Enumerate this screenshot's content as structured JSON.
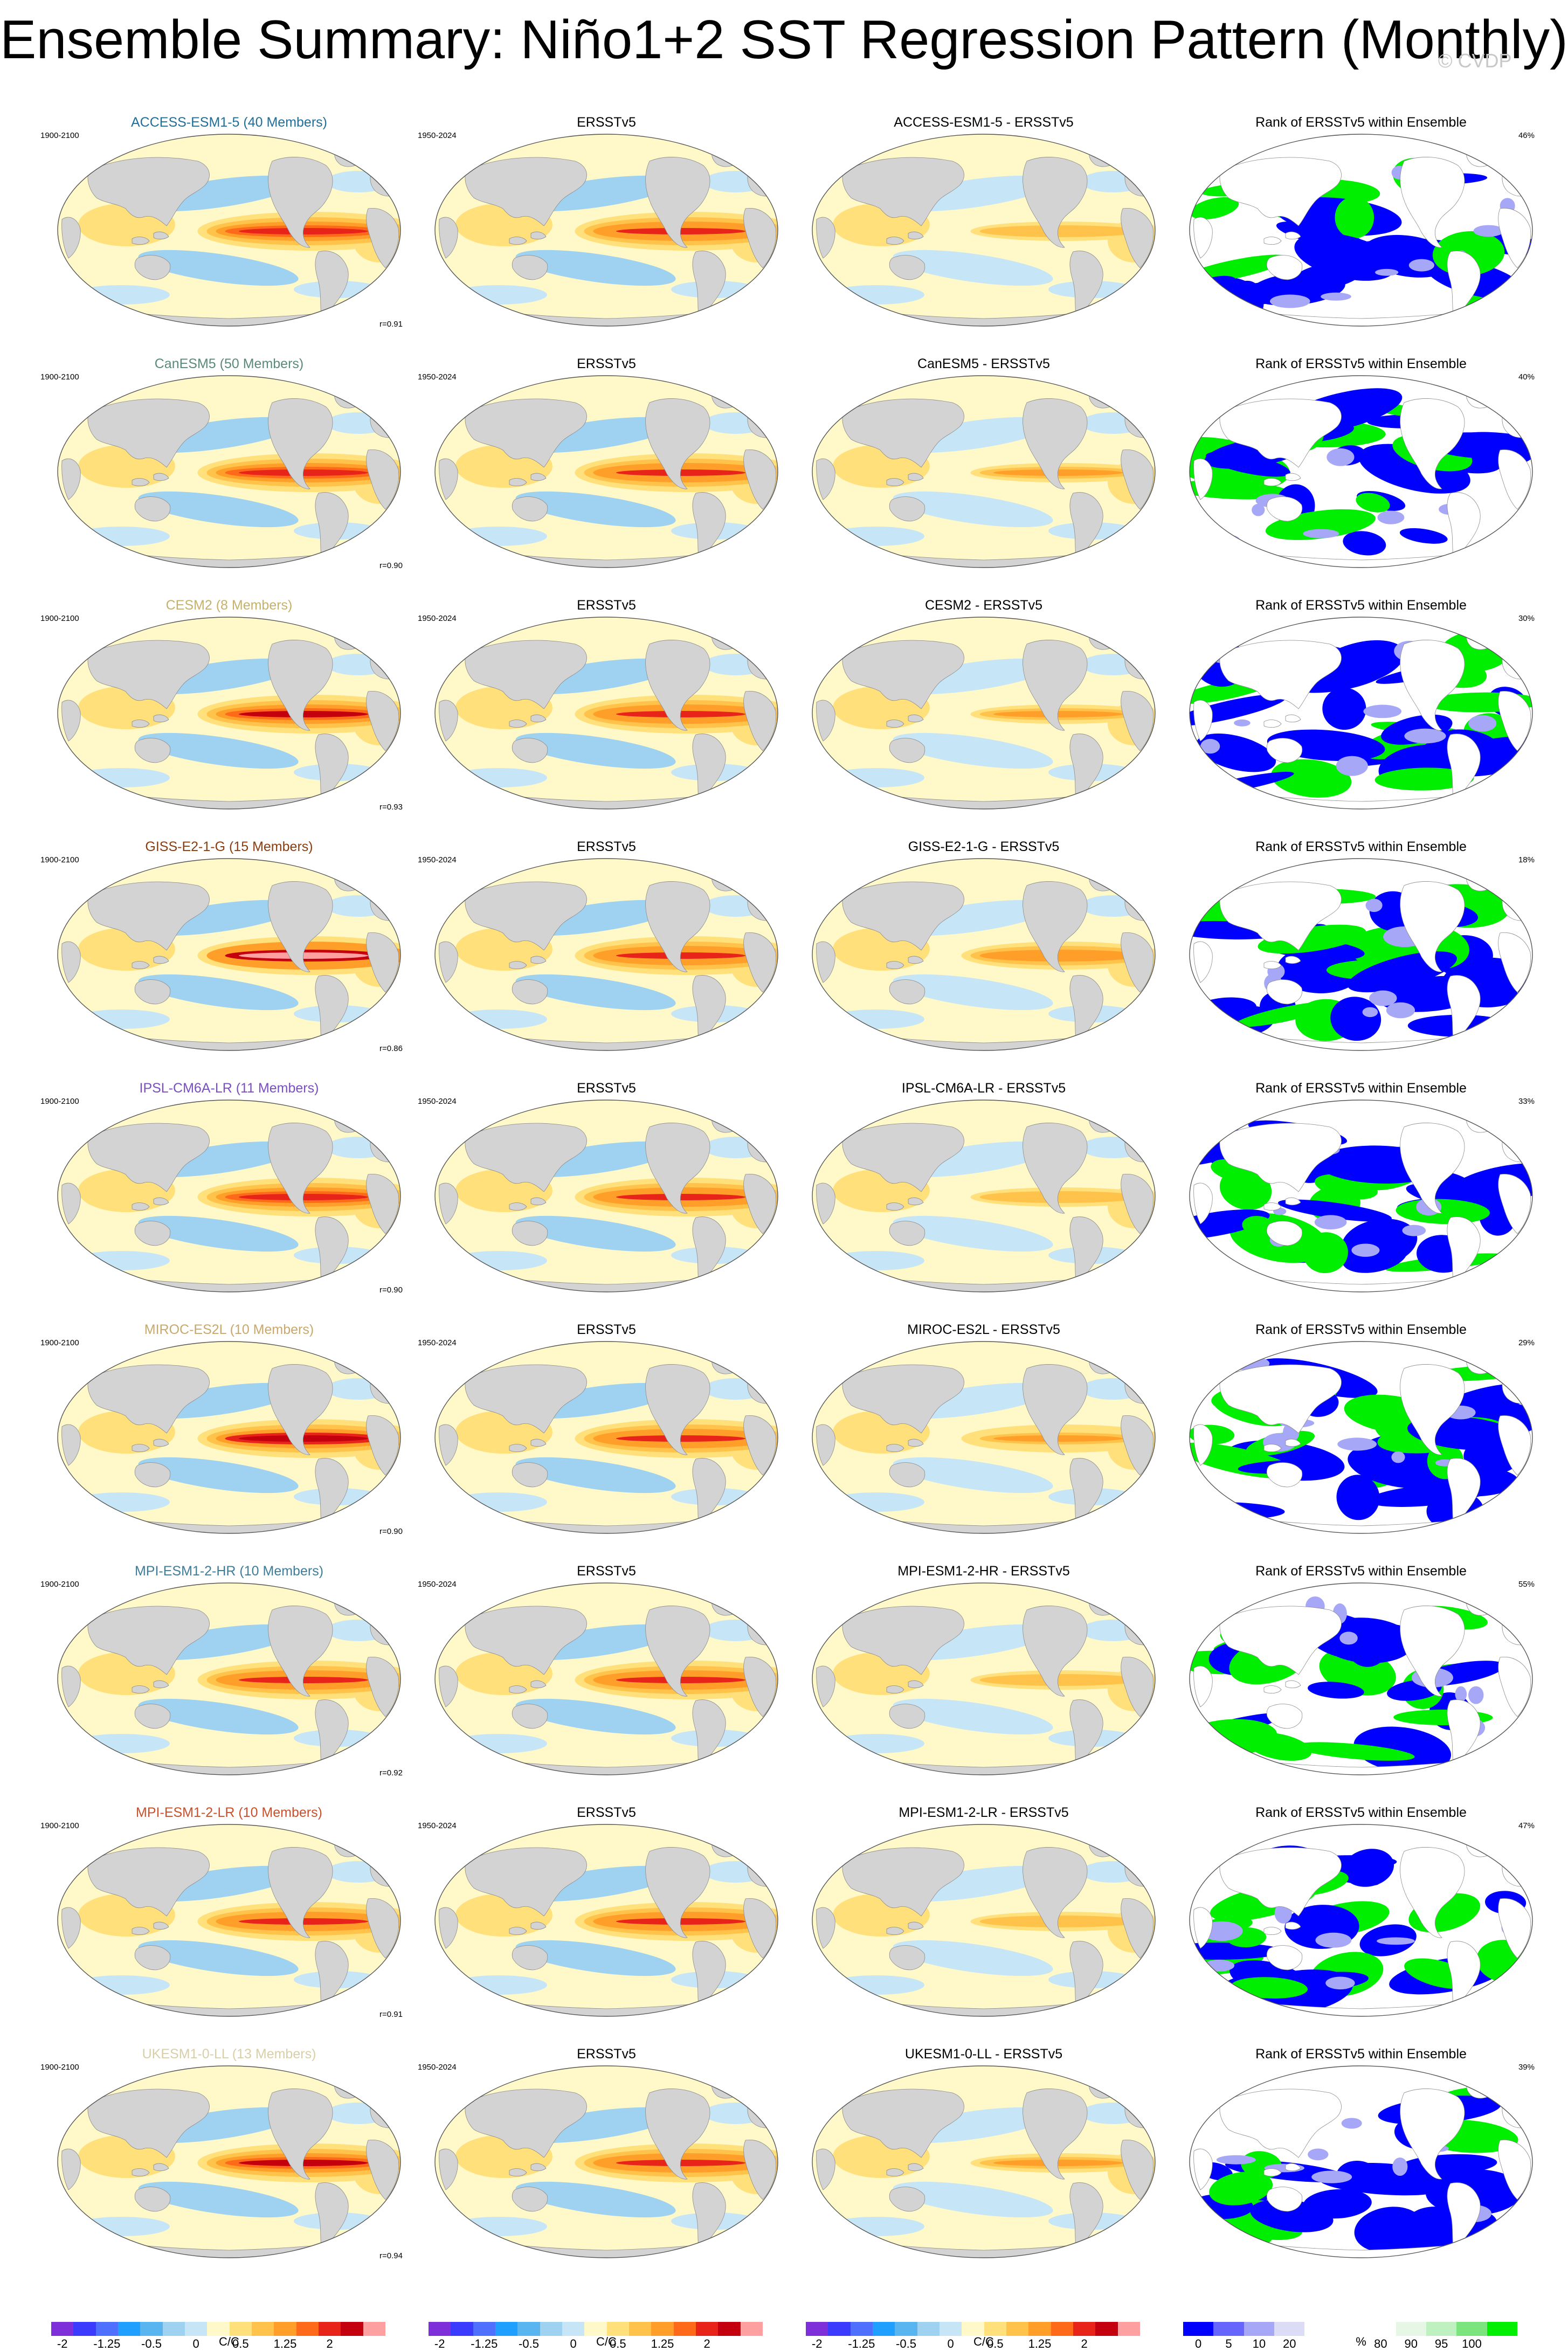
{
  "title": "Ensemble Summary: Niño1+2 SST Regression Pattern (Monthly)",
  "watermark": "© CVDP",
  "model_period": "1900-2100",
  "obs_period": "1950-2024",
  "obs_title": "ERSSTv5",
  "rank_title": "Rank of ERSSTv5 within Ensemble",
  "rows": [
    {
      "model": "ACCESS-ESM1-5 (40 Members)",
      "color": "#1f6f9a",
      "diff": "ACCESS-ESM1-5 - ERSSTv5",
      "r": "r=0.91",
      "pct": "46%",
      "amp": 1.0,
      "rank_style": 0
    },
    {
      "model": "CanESM5 (50 Members)",
      "color": "#5a8a78",
      "diff": "CanESM5 - ERSSTv5",
      "r": "r=0.90",
      "pct": "40%",
      "amp": 1.05,
      "rank_style": 1
    },
    {
      "model": "CESM2 (8 Members)",
      "color": "#c6b16a",
      "diff": "CESM2 - ERSSTv5",
      "r": "r=0.93",
      "pct": "30%",
      "amp": 1.1,
      "rank_style": 2
    },
    {
      "model": "GISS-E2-1-G (15 Members)",
      "color": "#8a3d10",
      "diff": "GISS-E2-1-G - ERSSTv5",
      "r": "r=0.86",
      "pct": "18%",
      "amp": 1.35,
      "rank_style": 3
    },
    {
      "model": "IPSL-CM6A-LR (11 Members)",
      "color": "#7a4fbf",
      "diff": "IPSL-CM6A-LR - ERSSTv5",
      "r": "r=0.90",
      "pct": "33%",
      "amp": 1.0,
      "rank_style": 4
    },
    {
      "model": "MIROC-ES2L (10 Members)",
      "color": "#c9a86c",
      "diff": "MIROC-ES2L - ERSSTv5",
      "r": "r=0.90",
      "pct": "29%",
      "amp": 1.2,
      "rank_style": 5
    },
    {
      "model": "MPI-ESM1-2-HR (10 Members)",
      "color": "#3e7d9a",
      "diff": "MPI-ESM1-2-HR - ERSSTv5",
      "r": "r=0.92",
      "pct": "55%",
      "amp": 0.95,
      "rank_style": 6
    },
    {
      "model": "MPI-ESM1-2-LR (10 Members)",
      "color": "#c9502a",
      "diff": "MPI-ESM1-2-LR - ERSSTv5",
      "r": "r=0.91",
      "pct": "47%",
      "amp": 0.95,
      "rank_style": 7
    },
    {
      "model": "UKESM1-0-LL (13 Members)",
      "color": "#d9cfa6",
      "diff": "UKESM1-0-LL - ERSSTv5",
      "r": "r=0.94",
      "pct": "39%",
      "amp": 1.1,
      "rank_style": 8
    }
  ],
  "colorbar": {
    "unit": "C/C",
    "colors": [
      "#7f2fd9",
      "#3b3bff",
      "#4f6fff",
      "#1f9fff",
      "#59b5f0",
      "#9fd2f0",
      "#c6e6f7",
      "#fff8c8",
      "#ffe07a",
      "#ffc24a",
      "#ff9f2a",
      "#ff6a1a",
      "#e8231a",
      "#c4000f",
      "#ffa0a0"
    ],
    "ticks": [
      "-2",
      "-1.25",
      "-0.5",
      "0",
      "0.5",
      "1.25",
      "2"
    ]
  },
  "rank_colorbar": {
    "unit": "%",
    "colors": [
      "#0000ff",
      "#6666ff",
      "#a7a7f7",
      "#dcdcf7",
      "#ffffff",
      "#ffffff",
      "#ffffff",
      "#e6f7e6",
      "#bff0bf",
      "#7ce47c",
      "#00ee00"
    ],
    "ticks": [
      "0",
      "5",
      "10",
      "20",
      "80",
      "90",
      "95",
      "100"
    ]
  },
  "colors": {
    "land": "#d3d3d3",
    "missing": "#ffffff"
  }
}
